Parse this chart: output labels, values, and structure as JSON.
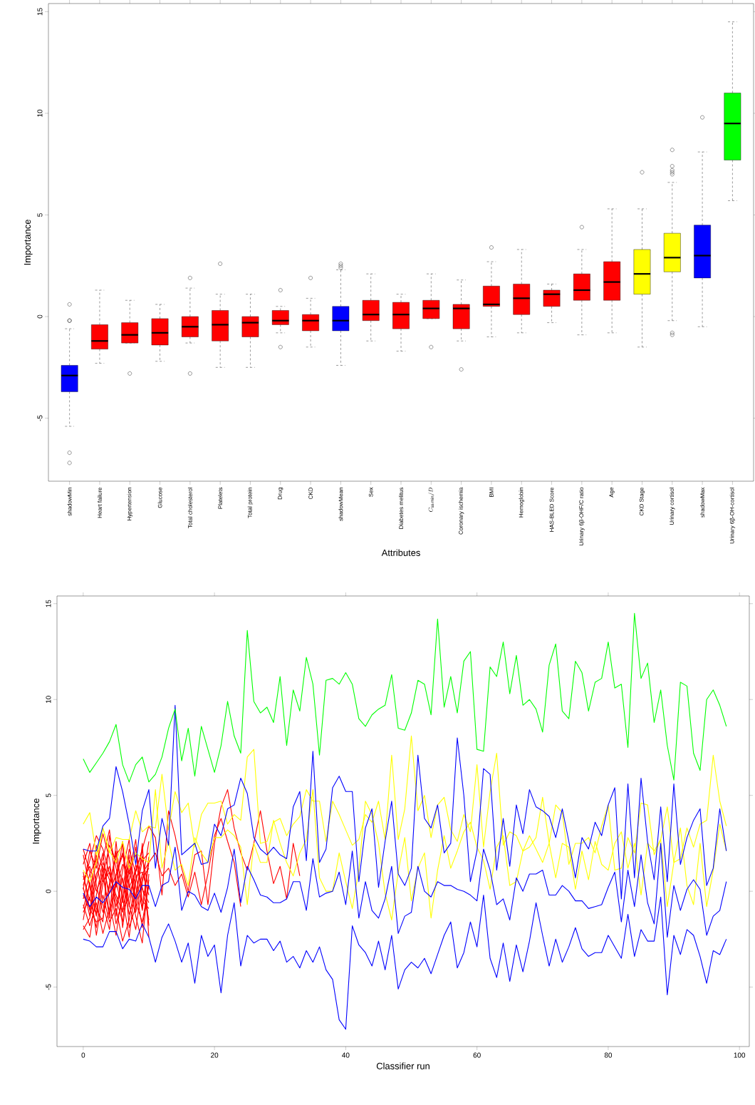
{
  "chart_data": [
    {
      "type": "box",
      "xlabel": "Attributes",
      "ylabel": "Importance",
      "categories": [
        "shadowMin",
        "Heart failure",
        "Hypertension",
        "Glucose",
        "Total cholesterol",
        "Platelets",
        "Total protein",
        "Drug",
        "CKD",
        "shadowMean",
        "Sex",
        "Diabetes melitus",
        "C_{\\mathrm{ss\\,min}}/D",
        "Coronary ischemia",
        "BMI",
        "Hemoglobin",
        "HAS-BLED Score",
        "Urinary 6β-OHF/C ratio",
        "Age",
        "CKD Stage",
        "Urinary cortisol",
        "shadowMax",
        "Urinary 6β-OH-cortisol"
      ],
      "colors": [
        "#0000ff",
        "#ff0000",
        "#ff0000",
        "#ff0000",
        "#ff0000",
        "#ff0000",
        "#ff0000",
        "#ff0000",
        "#ff0000",
        "#0000ff",
        "#ff0000",
        "#ff0000",
        "#ff0000",
        "#ff0000",
        "#ff0000",
        "#ff0000",
        "#ff0000",
        "#ff0000",
        "#ff0000",
        "#ffff00",
        "#ffff00",
        "#0000ff",
        "#00ff00"
      ],
      "boxes": [
        {
          "low": -5.4,
          "q1": -3.7,
          "median": -2.9,
          "q3": -2.4,
          "high": -0.6,
          "outliers": [
            0.6,
            -0.2,
            -0.2,
            -6.7,
            -7.2
          ]
        },
        {
          "low": -2.3,
          "q1": -1.6,
          "median": -1.2,
          "q3": -0.4,
          "high": 1.3
        },
        {
          "low": -1.3,
          "q1": -1.3,
          "median": -0.9,
          "q3": -0.3,
          "high": 0.8,
          "outliers": [
            -2.8
          ]
        },
        {
          "low": -2.2,
          "q1": -1.4,
          "median": -0.8,
          "q3": -0.1,
          "high": 0.6
        },
        {
          "low": -1.3,
          "q1": -1.0,
          "median": -0.5,
          "q3": 0.0,
          "high": 1.4,
          "outliers": [
            1.9,
            -2.8
          ]
        },
        {
          "low": -2.5,
          "q1": -1.2,
          "median": -0.4,
          "q3": 0.3,
          "high": 1.1,
          "outliers": [
            2.6
          ]
        },
        {
          "low": -2.5,
          "q1": -1.0,
          "median": -0.3,
          "q3": 0.0,
          "high": 1.1
        },
        {
          "low": -0.8,
          "q1": -0.4,
          "median": -0.2,
          "q3": 0.3,
          "high": 0.5,
          "outliers": [
            1.3,
            -1.5
          ]
        },
        {
          "low": -1.5,
          "q1": -0.7,
          "median": -0.2,
          "q3": 0.1,
          "high": 0.9,
          "outliers": [
            1.9
          ]
        },
        {
          "low": -2.4,
          "q1": -0.7,
          "median": -0.2,
          "q3": 0.5,
          "high": 2.3,
          "outliers": [
            2.6,
            2.5,
            2.4
          ]
        },
        {
          "low": -1.2,
          "q1": -0.2,
          "median": 0.1,
          "q3": 0.8,
          "high": 2.1
        },
        {
          "low": -1.7,
          "q1": -0.6,
          "median": 0.1,
          "q3": 0.7,
          "high": 1.1
        },
        {
          "low": -0.1,
          "q1": -0.1,
          "median": 0.4,
          "q3": 0.8,
          "high": 2.1,
          "outliers": [
            -1.5
          ]
        },
        {
          "low": -1.2,
          "q1": -0.6,
          "median": 0.4,
          "q3": 0.6,
          "high": 1.8,
          "outliers": [
            -2.6
          ]
        },
        {
          "low": -1.0,
          "q1": 0.5,
          "median": 0.6,
          "q3": 1.5,
          "high": 2.7,
          "outliers": [
            3.4
          ]
        },
        {
          "low": -0.8,
          "q1": 0.1,
          "median": 0.9,
          "q3": 1.6,
          "high": 3.3
        },
        {
          "low": -0.3,
          "q1": 0.5,
          "median": 1.1,
          "q3": 1.3,
          "high": 1.6
        },
        {
          "low": -0.9,
          "q1": 0.8,
          "median": 1.3,
          "q3": 2.1,
          "high": 3.3,
          "outliers": [
            4.4
          ]
        },
        {
          "low": -0.8,
          "q1": 0.8,
          "median": 1.7,
          "q3": 2.7,
          "high": 5.3
        },
        {
          "low": -1.5,
          "q1": 1.1,
          "median": 2.1,
          "q3": 3.3,
          "high": 5.3,
          "outliers": [
            7.1
          ]
        },
        {
          "low": -0.2,
          "q1": 2.2,
          "median": 2.9,
          "q3": 4.1,
          "high": 6.6,
          "outliers": [
            8.2,
            7.4,
            7.2,
            7.1,
            7.0,
            -0.8,
            -0.9
          ]
        },
        {
          "low": -0.5,
          "q1": 1.9,
          "median": 3.0,
          "q3": 4.5,
          "high": 8.1,
          "outliers": [
            9.8
          ]
        },
        {
          "low": 5.7,
          "q1": 7.7,
          "median": 9.5,
          "q3": 11.0,
          "high": 14.5
        }
      ],
      "ylim": [
        -8.1,
        15.4
      ],
      "yticks": [
        -5,
        0,
        5,
        10,
        15
      ]
    },
    {
      "type": "line",
      "xlabel": "Classifier run",
      "ylabel": "Importance",
      "x": [
        0,
        1,
        2,
        3,
        4,
        5,
        6,
        7,
        8,
        9,
        10,
        11,
        12,
        13,
        14,
        15,
        16,
        17,
        18,
        19,
        20,
        21,
        22,
        23,
        24,
        25,
        26,
        27,
        28,
        29,
        30,
        31,
        32,
        33,
        34,
        35,
        36,
        37,
        38,
        39,
        40,
        41,
        42,
        43,
        44,
        45,
        46,
        47,
        48,
        49,
        50,
        51,
        52,
        53,
        54,
        55,
        56,
        57,
        58,
        59,
        60,
        61,
        62,
        63,
        64,
        65,
        66,
        67,
        68,
        69,
        70,
        71,
        72,
        73,
        74,
        75,
        76,
        77,
        78,
        79,
        80,
        81,
        82,
        83,
        84,
        85,
        86,
        87,
        88,
        89,
        90,
        91,
        92,
        93,
        94,
        95,
        96,
        97,
        98
      ],
      "series": [
        {
          "color": "#ff0000",
          "x": [
            0,
            1,
            2,
            3,
            4,
            5,
            6,
            7,
            8,
            9,
            10
          ],
          "values": [
            0.8,
            -0.5,
            2.4,
            1.1,
            -1.2,
            0.3,
            2.6,
            -0.8,
            1.4,
            0.2,
            -1.5
          ]
        },
        {
          "color": "#ff0000",
          "x": [
            0,
            1,
            2,
            3,
            4,
            5,
            6,
            7,
            8,
            9,
            10
          ],
          "values": [
            -1.8,
            -2.4,
            -0.2,
            1.5,
            0.6,
            -1.7,
            -0.4,
            1.9,
            -1.1,
            0.7,
            1.2
          ]
        },
        {
          "color": "#ff0000",
          "x": [
            0,
            1,
            2,
            3,
            4,
            5,
            6,
            7,
            8,
            9,
            10
          ],
          "values": [
            2.2,
            1.0,
            -0.9,
            -1.6,
            2.9,
            1.2,
            -0.3,
            -2.4,
            0.5,
            1.8,
            0.1
          ]
        },
        {
          "color": "#ff0000",
          "x": [
            0,
            1,
            2,
            3,
            4,
            5,
            6,
            7,
            8,
            9,
            10
          ],
          "values": [
            -0.4,
            0.9,
            1.7,
            -0.7,
            -2.0,
            0.8,
            1.9,
            0.4,
            -1.3,
            -2.7,
            0.9
          ]
        },
        {
          "color": "#ff0000",
          "x": [
            0,
            1,
            2,
            3,
            4,
            5,
            6,
            7,
            8,
            9,
            10
          ],
          "values": [
            1.4,
            2.5,
            0.3,
            -1.1,
            0.2,
            2.1,
            -1.9,
            0.6,
            2.3,
            -0.5,
            -0.9
          ]
        },
        {
          "color": "#ff0000",
          "x": [
            0,
            1,
            2,
            3,
            4,
            5,
            6,
            7,
            8,
            9,
            10
          ],
          "values": [
            -1.1,
            -0.3,
            -1.9,
            0.4,
            1.3,
            -0.8,
            0.7,
            -1.2,
            -0.2,
            1.6,
            2.0
          ]
        },
        {
          "color": "#ff0000",
          "x": [
            0,
            1,
            2,
            3,
            4,
            5,
            6,
            7,
            8,
            9,
            10
          ],
          "values": [
            0.3,
            1.6,
            2.9,
            2.2,
            0.9,
            -0.4,
            -1.6,
            1.3,
            1.9,
            0.1,
            -0.6
          ]
        },
        {
          "color": "#ff0000",
          "x": [
            0,
            1,
            2,
            3,
            4,
            5,
            6,
            7,
            8,
            9,
            10
          ],
          "values": [
            -2.0,
            -1.4,
            0.6,
            2.0,
            -0.6,
            -2.3,
            0.1,
            2.2,
            0.9,
            -1.0,
            1.5
          ]
        },
        {
          "color": "#ff0000",
          "x": [
            0,
            1,
            2,
            3,
            4,
            5,
            6,
            7,
            8,
            9,
            10
          ],
          "values": [
            1.9,
            0.2,
            -1.3,
            0.8,
            2.4,
            1.6,
            0.5,
            -0.7,
            -2.0,
            0.4,
            2.6
          ]
        },
        {
          "color": "#ff0000",
          "x": [
            0,
            1,
            2,
            3,
            4,
            5,
            6,
            7,
            8,
            9,
            10
          ],
          "values": [
            -0.7,
            -1.8,
            -0.6,
            -2.2,
            -0.9,
            0.5,
            -1.0,
            -0.3,
            1.1,
            2.1,
            -1.8
          ]
        },
        {
          "color": "#ff0000",
          "x": [
            0,
            1,
            2,
            3,
            4,
            5,
            6,
            7,
            8,
            9,
            10
          ],
          "values": [
            0.1,
            2.1,
            1.2,
            3.0,
            1.7,
            -1.3,
            1.1,
            2.7,
            -0.6,
            -1.6,
            0.3
          ]
        },
        {
          "color": "#ff0000",
          "x": [
            0,
            1,
            2,
            3,
            4,
            5,
            6,
            7,
            8,
            9,
            10
          ],
          "values": [
            -1.5,
            0.5,
            -2.3,
            -0.2,
            -1.6,
            -0.9,
            -2.6,
            -1.5,
            0.8,
            1.0,
            -0.2
          ]
        },
        {
          "color": "#ff0000",
          "x": [
            0,
            1,
            2,
            3,
            4,
            5,
            6,
            7,
            8,
            9,
            10
          ],
          "values": [
            1.0,
            -1.0,
            0.9,
            1.7,
            3.2,
            0.2,
            1.4,
            0.9,
            2.7,
            -0.9,
            1.8
          ]
        },
        {
          "color": "#ff0000",
          "x": [
            0,
            1,
            2,
            3,
            4,
            5,
            6,
            7,
            8,
            9,
            10
          ],
          "values": [
            -0.2,
            -0.9,
            -1.6,
            -1.4,
            0.4,
            1.9,
            2.4,
            -1.9,
            -0.8,
            2.5,
            -2.4
          ]
        },
        {
          "color": "#ff0000",
          "x": [
            0,
            1,
            2,
            3,
            4,
            5,
            6,
            7,
            8,
            9,
            10
          ],
          "values": [
            0.6,
            1.3,
            0.0,
            0.9,
            -1.4,
            2.6,
            -0.6,
            1.6,
            0.3,
            -1.9,
            0.6
          ]
        },
        {
          "color": "#ff0000",
          "x": [
            0,
            1,
            2,
            3,
            4,
            5,
            6,
            7,
            8,
            9,
            10,
            11,
            12,
            13,
            14,
            15,
            16,
            17,
            18,
            19,
            20,
            21,
            22,
            23,
            24,
            25,
            26,
            27,
            28,
            29,
            30,
            31,
            32,
            33
          ],
          "values": [
            -0.9,
            0.4,
            -1.2,
            1.3,
            -0.1,
            0.9,
            2.0,
            0.2,
            1.0,
            2.2,
            3.4,
            2.8,
            -0.2,
            4.2,
            2.9,
            1.2,
            0.0,
            1.9,
            2.1,
            -0.7,
            2.5,
            4.4,
            5.3,
            3.3,
            2.0,
            1.1,
            2.5,
            4.2,
            2.1,
            0.4,
            1.3,
            -0.4,
            2.5,
            0.8
          ]
        },
        {
          "color": "#ff0000",
          "x": [
            0,
            1,
            2,
            3,
            4,
            5,
            6,
            7,
            8,
            9,
            10,
            11,
            12,
            13,
            14,
            15,
            16,
            17,
            18,
            19,
            20,
            21,
            22,
            23,
            24
          ],
          "values": [
            0.2,
            -1.3,
            1.9,
            0.5,
            1.0,
            -0.2,
            -1.1,
            1.1,
            -0.4,
            0.9,
            1.5,
            2.0,
            0.8,
            1.2,
            0.3,
            0.9,
            -0.3,
            1.0,
            -0.7,
            0.9,
            2.9,
            3.8,
            2.6,
            1.5,
            -0.8
          ]
        },
        {
          "color": "#ffff00",
          "values": [
            3.5,
            4.1,
            1.9,
            3.3,
            2.0,
            2.8,
            2.7,
            2.7,
            4.2,
            3.1,
            3.4,
            3.3,
            6.1,
            3.2,
            5.2,
            4.1,
            4.6,
            2.3,
            4.0,
            4.6,
            4.6,
            4.7,
            3.5,
            4.0,
            3.7,
            7.0,
            7.4,
            2.5,
            2.6,
            3.6,
            3.8,
            2.9,
            3.5,
            3.9,
            5.3,
            4.7,
            4.7,
            2.6,
            4.7,
            4.0,
            3.2,
            2.4,
            2.7,
            4.0,
            3.6,
            4.7,
            2.7,
            7.1,
            2.7,
            4.3,
            8.1,
            4.2,
            5.0,
            2.8,
            4.5,
            4.9,
            3.2,
            2.6,
            4.0,
            3.1,
            6.6,
            2.3,
            5.2,
            7.2,
            2.4,
            3.1,
            2.9,
            2.1,
            2.3,
            2.8,
            4.9,
            2.5,
            4.5,
            4.1,
            1.4,
            2.5,
            2.5,
            2.8,
            2.0,
            3.4,
            4.5,
            1.1,
            1.2,
            2.8,
            2.0,
            4.6,
            4.5,
            1.9,
            2.7,
            4.4,
            1.5,
            1.7,
            3.3,
            2.3,
            3.5,
            3.7,
            7.1,
            4.7,
            3.4
          ]
        },
        {
          "color": "#ffff00",
          "values": [
            1.1,
            0.5,
            1.5,
            3.3,
            2.1,
            1.5,
            2.6,
            1.2,
            2.0,
            1.7,
            1.5,
            5.3,
            1.2,
            2.6,
            1.1,
            1.4,
            0.3,
            2.8,
            2.0,
            1.5,
            2.8,
            2.8,
            3.2,
            2.9,
            2.3,
            -0.7,
            2.5,
            1.5,
            1.5,
            3.7,
            2.5,
            1.5,
            0.8,
            2.0,
            2.7,
            5.3,
            0.7,
            0.0,
            0.0,
            2.0,
            0.5,
            -0.9,
            1.1,
            4.7,
            4.0,
            2.5,
            -0.1,
            -1.5,
            1.0,
            2.8,
            -0.5,
            1.2,
            2.0,
            -1.4,
            1.1,
            2.9,
            1.2,
            2.1,
            3.1,
            3.6,
            2.3,
            1.6,
            0.1,
            2.3,
            2.9,
            0.3,
            0.5,
            2.1,
            2.9,
            2.2,
            1.5,
            2.5,
            0.7,
            2.5,
            2.3,
            0.1,
            2.1,
            0.6,
            2.6,
            1.4,
            1.1,
            2.5,
            3.1,
            1.2,
            2.5,
            -0.2,
            2.5,
            2.1,
            2.7,
            -0.8,
            1.5,
            3.3,
            0.3,
            -0.7,
            2.5,
            -0.8,
            1.1,
            3.5,
            2.1
          ]
        },
        {
          "color": "#0000ff",
          "values": [
            -2.5,
            -2.6,
            -2.9,
            -2.9,
            -2.1,
            -2.1,
            -3.0,
            -2.5,
            -2.6,
            -1.7,
            -2.4,
            -3.7,
            -2.4,
            -1.7,
            -2.6,
            -3.7,
            -2.7,
            -4.8,
            -2.3,
            -3.4,
            -2.8,
            -5.3,
            -2.3,
            -0.6,
            -3.9,
            -2.3,
            -2.7,
            -2.5,
            -2.5,
            -3.1,
            -2.6,
            -3.7,
            -3.4,
            -4.0,
            -3.1,
            -3.7,
            -2.9,
            -4.1,
            -4.6,
            -6.7,
            -7.2,
            -1.8,
            -2.8,
            -3.2,
            -3.9,
            -2.6,
            -4.1,
            -2.3,
            -5.1,
            -4.1,
            -3.7,
            -4.0,
            -3.5,
            -4.3,
            -3.3,
            -2.3,
            -1.6,
            -4.0,
            -3.2,
            -1.6,
            -2.9,
            -0.2,
            -3.5,
            -4.5,
            -2.7,
            -4.7,
            -2.8,
            -4.2,
            -2.6,
            -0.6,
            -2.3,
            -3.9,
            -2.5,
            -3.7,
            -2.9,
            -1.9,
            -3.0,
            -3.4,
            -3.2,
            -3.2,
            -2.3,
            -2.9,
            -3.5,
            -1.2,
            -3.4,
            -2.0,
            -2.6,
            -2.6,
            -0.3,
            -5.4,
            -2.3,
            -3.3,
            -2.0,
            -2.3,
            -3.4,
            -4.8,
            -3.1,
            -3.3,
            -2.5
          ]
        },
        {
          "color": "#0000ff",
          "values": [
            -0.1,
            -0.8,
            -0.3,
            -0.6,
            -0.1,
            0.5,
            0.2,
            0.1,
            -0.4,
            0.3,
            0.3,
            -0.8,
            0.3,
            0.5,
            2.3,
            -1.0,
            0.0,
            -0.2,
            -0.8,
            -1.0,
            -0.1,
            -1.1,
            0.2,
            2.2,
            -0.6,
            1.3,
            0.6,
            -0.2,
            -0.3,
            -0.6,
            -0.6,
            -0.4,
            0.5,
            0.5,
            -1.0,
            1.7,
            -0.3,
            -0.1,
            0.0,
            1.0,
            -0.7,
            2.1,
            -1.4,
            0.5,
            -1.0,
            -1.4,
            -0.4,
            1.3,
            -2.2,
            -1.3,
            -1.1,
            1.3,
            0.0,
            -0.3,
            0.5,
            0.3,
            0.3,
            0.1,
            0.0,
            -0.2,
            -0.5,
            2.2,
            1.1,
            -0.7,
            -0.4,
            -1.5,
            0.7,
            0.0,
            0.9,
            0.9,
            1.1,
            -0.2,
            -0.2,
            0.3,
            0.0,
            -0.5,
            -0.5,
            -0.9,
            -0.8,
            -0.7,
            0.2,
            1.0,
            -1.6,
            1.1,
            -0.8,
            1.9,
            -0.6,
            -1.7,
            2.5,
            -2.4,
            0.3,
            -1.0,
            0.1,
            0.6,
            0.1,
            -2.3,
            -1.3,
            -1.0,
            0.5
          ]
        },
        {
          "color": "#0000ff",
          "values": [
            2.2,
            2.1,
            2.1,
            3.4,
            3.8,
            6.5,
            5.2,
            3.5,
            1.4,
            4.2,
            5.3,
            1.2,
            3.8,
            2.4,
            9.7,
            1.9,
            2.2,
            2.5,
            1.4,
            1.5,
            3.5,
            2.9,
            4.3,
            4.5,
            5.9,
            5.1,
            2.8,
            2.2,
            1.9,
            2.3,
            1.9,
            1.7,
            4.4,
            5.2,
            1.6,
            7.3,
            1.5,
            2.2,
            5.4,
            6.0,
            5.2,
            5.2,
            0.5,
            3.3,
            4.3,
            0.2,
            2.6,
            4.7,
            0.9,
            0.3,
            1.2,
            7.1,
            3.8,
            3.3,
            4.5,
            2.0,
            2.5,
            8.0,
            5.0,
            0.5,
            2.1,
            6.4,
            6.1,
            1.1,
            3.8,
            1.3,
            4.5,
            3.0,
            5.3,
            4.4,
            4.2,
            3.9,
            2.8,
            4.3,
            2.6,
            0.7,
            2.8,
            2.2,
            3.6,
            2.9,
            4.5,
            5.4,
            -0.4,
            5.6,
            0.7,
            5.9,
            2.6,
            0.6,
            4.4,
            0.5,
            5.6,
            1.4,
            2.8,
            3.7,
            4.3,
            0.3,
            1.2,
            4.3,
            2.1
          ]
        },
        {
          "color": "#00ff00",
          "values": [
            6.9,
            6.2,
            6.7,
            7.2,
            7.8,
            8.7,
            6.6,
            5.7,
            6.6,
            7.0,
            5.7,
            6.1,
            7.0,
            8.5,
            9.5,
            6.8,
            8.5,
            6.0,
            8.6,
            7.4,
            6.2,
            7.6,
            9.9,
            8.1,
            7.2,
            13.6,
            9.9,
            9.3,
            9.6,
            8.8,
            11.2,
            7.6,
            10.5,
            9.4,
            12.2,
            10.8,
            7.1,
            11.0,
            11.1,
            10.8,
            11.4,
            10.8,
            9.0,
            8.6,
            9.2,
            9.5,
            9.7,
            11.3,
            8.5,
            8.4,
            9.3,
            11.0,
            10.8,
            9.2,
            14.2,
            9.6,
            11.2,
            9.3,
            12.0,
            12.5,
            7.4,
            7.3,
            11.7,
            11.2,
            13.0,
            10.3,
            12.3,
            9.7,
            10.0,
            9.5,
            8.3,
            11.8,
            12.9,
            9.4,
            9.0,
            12.0,
            11.4,
            9.4,
            10.9,
            11.1,
            13.0,
            10.6,
            10.8,
            7.5,
            14.5,
            11.1,
            11.9,
            8.8,
            10.5,
            7.6,
            5.8,
            10.9,
            10.7,
            7.2,
            6.3,
            10.0,
            10.5,
            9.7,
            8.6
          ]
        }
      ],
      "xlim": [
        -4,
        101.5
      ],
      "ylim": [
        -8.1,
        15.4
      ],
      "xticks": [
        0,
        20,
        40,
        60,
        80,
        100
      ],
      "yticks": [
        -5,
        0,
        5,
        10,
        15
      ]
    }
  ]
}
